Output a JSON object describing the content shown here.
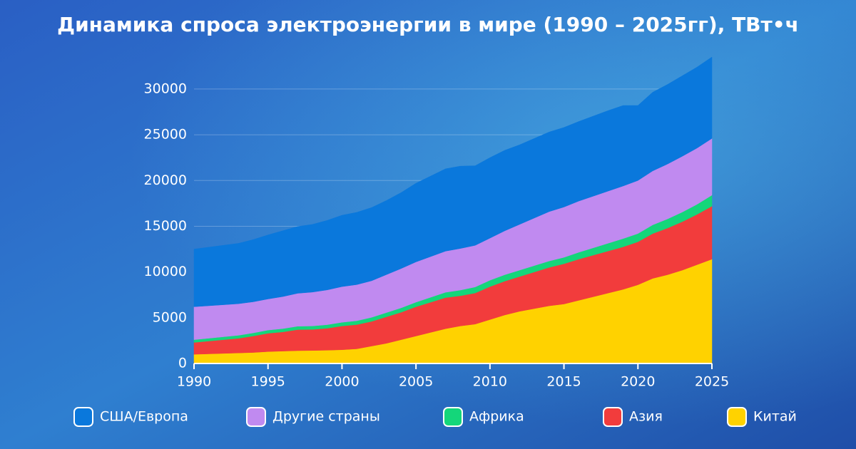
{
  "chart_data": {
    "type": "stacked_area",
    "title": "Динамика спроса электроэнергии в мире (1990 – 2025гг), ТВт•ч",
    "x": [
      1990,
      1991,
      1992,
      1993,
      1994,
      1995,
      1996,
      1997,
      1998,
      1999,
      2000,
      2001,
      2002,
      2003,
      2004,
      2005,
      2006,
      2007,
      2008,
      2009,
      2010,
      2011,
      2012,
      2013,
      2014,
      2015,
      2016,
      2017,
      2018,
      2019,
      2020,
      2021,
      2022,
      2023,
      2024,
      2025
    ],
    "xlim": [
      1990,
      2025
    ],
    "xticks": [
      1990,
      1995,
      2000,
      2005,
      2010,
      2015,
      2020,
      2025
    ],
    "ylim": [
      0,
      33500
    ],
    "yticks": [
      0,
      5000,
      10000,
      15000,
      20000,
      25000,
      30000
    ],
    "grid": true,
    "legend": "bottom",
    "series": [
      {
        "name": "Китай",
        "color": "#ffd200",
        "values": [
          1000,
          1050,
          1100,
          1150,
          1200,
          1300,
          1350,
          1400,
          1420,
          1450,
          1500,
          1600,
          1900,
          2200,
          2600,
          3000,
          3400,
          3800,
          4100,
          4300,
          4800,
          5300,
          5700,
          6000,
          6300,
          6500,
          6900,
          7300,
          7700,
          8100,
          8600,
          9300,
          9700,
          10200,
          10800,
          11400
        ]
      },
      {
        "name": "Азия",
        "color": "#f23c3c",
        "values": [
          1300,
          1400,
          1500,
          1600,
          1800,
          2000,
          2100,
          2300,
          2300,
          2400,
          2600,
          2650,
          2700,
          2900,
          3000,
          3200,
          3300,
          3400,
          3300,
          3400,
          3600,
          3700,
          3800,
          4000,
          4200,
          4400,
          4500,
          4550,
          4600,
          4650,
          4700,
          4900,
          5100,
          5300,
          5500,
          5800
        ]
      },
      {
        "name": "Африка",
        "color": "#14d67a",
        "values": [
          300,
          310,
          320,
          330,
          340,
          350,
          360,
          370,
          380,
          390,
          400,
          420,
          440,
          460,
          480,
          500,
          540,
          580,
          620,
          660,
          700,
          700,
          700,
          700,
          700,
          700,
          750,
          800,
          850,
          900,
          900,
          950,
          1000,
          1050,
          1100,
          1200
        ]
      },
      {
        "name": "Другие страны",
        "color": "#c08af0",
        "values": [
          3600,
          3550,
          3500,
          3450,
          3400,
          3400,
          3500,
          3600,
          3700,
          3800,
          3900,
          3950,
          4000,
          4150,
          4300,
          4400,
          4450,
          4500,
          4550,
          4550,
          4600,
          4800,
          5000,
          5200,
          5400,
          5500,
          5600,
          5650,
          5700,
          5750,
          5800,
          5900,
          6000,
          6100,
          6150,
          6200
        ]
      },
      {
        "name": "США/Европа",
        "color": "#0a78dc",
        "values": [
          6300,
          6400,
          6500,
          6600,
          6800,
          7000,
          7200,
          7300,
          7400,
          7600,
          7800,
          7900,
          8000,
          8100,
          8300,
          8600,
          8800,
          9000,
          9000,
          8700,
          8800,
          8800,
          8700,
          8700,
          8700,
          8700,
          8700,
          8750,
          8800,
          8800,
          8200,
          8600,
          8700,
          8800,
          8850,
          8900
        ]
      }
    ],
    "legend_order": [
      4,
      3,
      2,
      1,
      0
    ]
  }
}
